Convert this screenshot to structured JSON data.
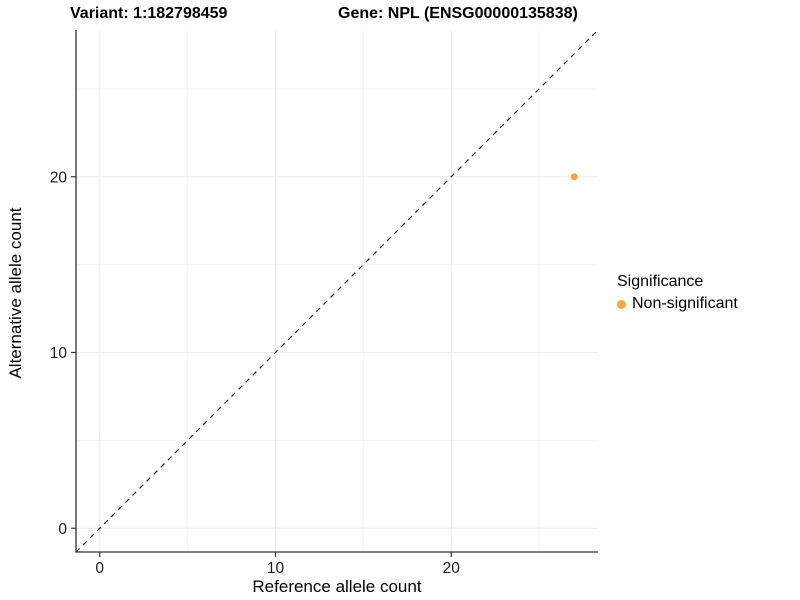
{
  "chart_data": {
    "type": "scatter",
    "titles": {
      "left": "Variant: 1:182798459",
      "right": "Gene: NPL (ENSG00000135838)"
    },
    "xlabel": "Reference allele count",
    "ylabel": "Alternative allele count",
    "xlim": [
      -1.35,
      28.35
    ],
    "ylim": [
      -1.35,
      28.35
    ],
    "x_major_ticks": [
      0,
      10,
      20
    ],
    "y_major_ticks": [
      0,
      10,
      20
    ],
    "x_minor_ticks": [
      5,
      15,
      25
    ],
    "y_minor_ticks": [
      5,
      15,
      25
    ],
    "grid": true,
    "reference_line": {
      "equation": "y = x",
      "style": "dashed",
      "color": "#000000",
      "from": [
        -1.35,
        -1.35
      ],
      "to": [
        28.35,
        28.35
      ]
    },
    "series": [
      {
        "name": "Non-significant",
        "color": "#FFA33B",
        "points": [
          {
            "x": 27,
            "y": 20
          }
        ]
      }
    ],
    "legend": {
      "title": "Significance",
      "position": "right",
      "items": [
        {
          "label": "Non-significant",
          "color": "#FFA33B"
        }
      ]
    },
    "colors": {
      "grid_major": "#EBEBEB",
      "grid_minor": "#F5F5F5",
      "axis_line": "#333333",
      "tick_mark": "#333333",
      "tick_label": "#1A1A1A",
      "background": "#FFFFFF"
    }
  }
}
